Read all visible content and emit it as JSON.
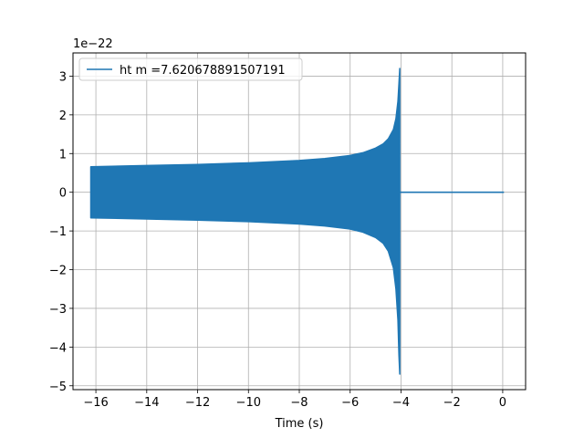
{
  "chart_data": {
    "type": "line",
    "xlabel": "Time (s)",
    "ylabel": "",
    "y_offset_label": "1e−22",
    "xlim": [
      -16.9,
      0.9
    ],
    "ylim": [
      -5.1,
      3.6
    ],
    "xticks": [
      -16,
      -14,
      -12,
      -10,
      -8,
      -6,
      -4,
      -2,
      0
    ],
    "yticks": [
      3,
      2,
      1,
      0,
      -1,
      -2,
      -3,
      -4,
      -5
    ],
    "xtick_labels": [
      "−16",
      "−14",
      "−12",
      "−10",
      "−8",
      "−6",
      "−4",
      "−2",
      "0"
    ],
    "ytick_labels": [
      "3",
      "2",
      "1",
      "0",
      "−1",
      "−2",
      "−3",
      "−4",
      "−5"
    ],
    "grid": true,
    "legend_position": "top-left",
    "series": [
      {
        "name": "ht m =7.620678891507191",
        "color": "#1f77b4",
        "envelope": {
          "x": [
            -16.2,
            -14,
            -12,
            -10,
            -8,
            -7,
            -6,
            -5.5,
            -5,
            -4.7,
            -4.5,
            -4.3,
            -4.2,
            -4.12,
            -4.08,
            -4.05
          ],
          "upper": [
            0.66,
            0.69,
            0.72,
            0.76,
            0.82,
            0.87,
            0.95,
            1.02,
            1.14,
            1.25,
            1.38,
            1.62,
            1.9,
            2.35,
            2.8,
            3.2
          ],
          "lower": [
            -0.66,
            -0.69,
            -0.72,
            -0.76,
            -0.82,
            -0.87,
            -0.95,
            -1.03,
            -1.17,
            -1.32,
            -1.52,
            -1.95,
            -2.5,
            -3.3,
            -4.2,
            -4.7
          ]
        },
        "flat_segment": {
          "x": [
            -4.05,
            0.05
          ],
          "y": 0.0
        }
      }
    ]
  }
}
